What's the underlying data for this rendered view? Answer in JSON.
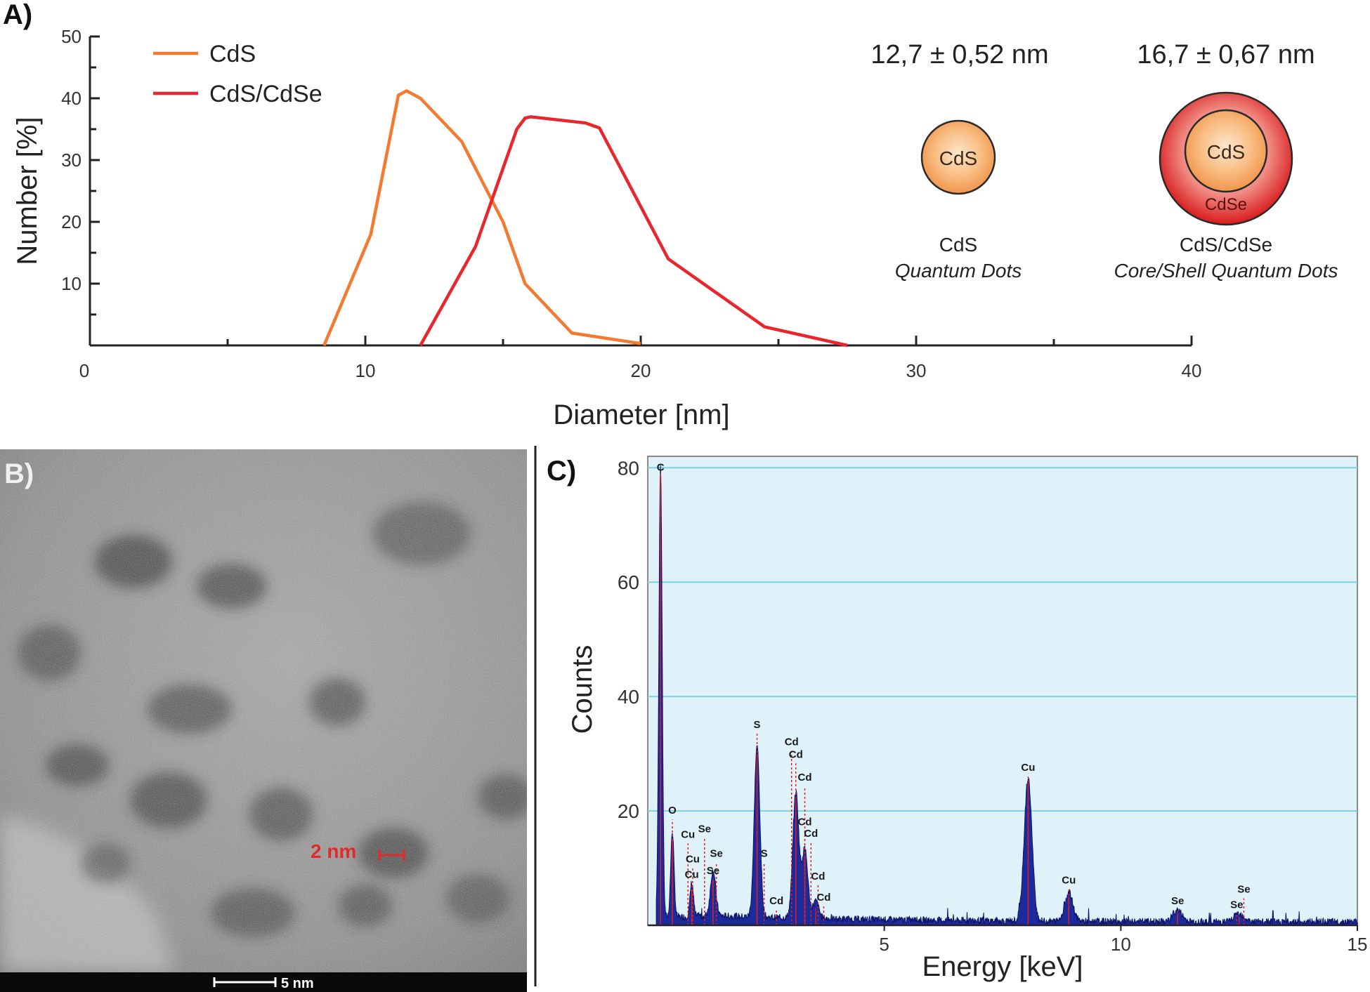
{
  "colors": {
    "cds": "#f47a32",
    "cdsse": "#e8262b",
    "axis": "#222222",
    "eds_bg": "#dff2fa",
    "eds_grid": "#7ecfe4",
    "eds_fill": "#1c2a9c",
    "eds_marker": "#e02020",
    "tem_scale": "#e12a2a"
  },
  "panel_labels": {
    "a": "A)",
    "b": "B)",
    "c": "C)"
  },
  "chart_data": [
    {
      "id": "A",
      "type": "line",
      "title": "",
      "xlabel": "Diameter [nm]",
      "ylabel": "Number [%]",
      "xlim": [
        0,
        40
      ],
      "ylim": [
        0,
        50
      ],
      "xticks": [
        "0",
        "10",
        "20",
        "30",
        "40"
      ],
      "yticks": [
        "10",
        "20",
        "30",
        "40",
        "50"
      ],
      "series": [
        {
          "name": "CdS",
          "color": "#f47a32",
          "x": [
            8.5,
            10.2,
            11.2,
            11.5,
            12.0,
            13.5,
            15.0,
            15.8,
            17.5,
            20.0
          ],
          "y": [
            0,
            18,
            40.5,
            41.2,
            40,
            33,
            20,
            10,
            2,
            0.3
          ]
        },
        {
          "name": "CdS/CdSe",
          "color": "#e8262b",
          "x": [
            12.0,
            14.0,
            15.5,
            15.8,
            16.0,
            18.0,
            18.5,
            21.0,
            24.5,
            27.5
          ],
          "y": [
            0,
            16,
            35,
            36.8,
            37,
            36,
            35.2,
            14,
            3,
            0
          ]
        }
      ],
      "annotations": {
        "size_cds": "12,7 ± 0,52 nm",
        "size_cdsse": "16,7 ± 0,67 nm",
        "core_label": "CdS",
        "shell_label": "CdSe",
        "caption_cds_1": "CdS",
        "caption_cds_2": "Quantum Dots",
        "caption_cdsse_1": "CdS/CdSe",
        "caption_cdsse_2": "Core/Shell Quantum Dots"
      }
    },
    {
      "id": "C",
      "type": "area",
      "title": "",
      "xlabel": "Energy [keV]",
      "ylabel": "Counts",
      "xlim": [
        0,
        15
      ],
      "ylim": [
        0,
        82
      ],
      "xticks": [
        "5",
        "10",
        "15"
      ],
      "yticks": [
        "20",
        "40",
        "60",
        "80"
      ],
      "peaks": [
        {
          "e": 0.27,
          "h": 79
        },
        {
          "e": 0.52,
          "h": 15
        },
        {
          "e": 0.93,
          "h": 6
        },
        {
          "e": 1.38,
          "h": 8
        },
        {
          "e": 2.31,
          "h": 30
        },
        {
          "e": 3.13,
          "h": 22
        },
        {
          "e": 3.32,
          "h": 12
        },
        {
          "e": 3.55,
          "h": 3
        },
        {
          "e": 8.04,
          "h": 25
        },
        {
          "e": 8.9,
          "h": 5
        },
        {
          "e": 11.2,
          "h": 2
        },
        {
          "e": 12.5,
          "h": 1.5
        }
      ],
      "element_labels": [
        {
          "text": "C",
          "e": 0.27,
          "h": 79
        },
        {
          "text": "O",
          "e": 0.52,
          "h": 19
        },
        {
          "text": "Cu",
          "e": 0.85,
          "h": 14.8
        },
        {
          "text": "Se",
          "e": 1.2,
          "h": 15.8
        },
        {
          "text": "Cu",
          "e": 0.95,
          "h": 10.5
        },
        {
          "text": "Se",
          "e": 1.45,
          "h": 11.5
        },
        {
          "text": "Cu",
          "e": 0.93,
          "h": 7.8
        },
        {
          "text": "Se",
          "e": 1.38,
          "h": 8.5
        },
        {
          "text": "S",
          "e": 2.31,
          "h": 34
        },
        {
          "text": "S",
          "e": 2.46,
          "h": 11.5
        },
        {
          "text": "Cd",
          "e": 2.72,
          "h": 3.2
        },
        {
          "text": "Cd",
          "e": 3.04,
          "h": 31
        },
        {
          "text": "Cd",
          "e": 3.13,
          "h": 28.8
        },
        {
          "text": "Cd",
          "e": 3.32,
          "h": 24.8
        },
        {
          "text": "Cd",
          "e": 3.32,
          "h": 17
        },
        {
          "text": "Cd",
          "e": 3.45,
          "h": 15
        },
        {
          "text": "Cd",
          "e": 3.6,
          "h": 7.5
        },
        {
          "text": "Cd",
          "e": 3.72,
          "h": 3.8
        },
        {
          "text": "Cu",
          "e": 8.04,
          "h": 26.5
        },
        {
          "text": "Cu",
          "e": 8.9,
          "h": 6.8
        },
        {
          "text": "Se",
          "e": 11.2,
          "h": 3.2
        },
        {
          "text": "Se",
          "e": 12.45,
          "h": 2.5
        },
        {
          "text": "Se",
          "e": 12.6,
          "h": 5.2
        }
      ]
    }
  ],
  "tem": {
    "feature_scale_label": "2 nm",
    "scalebar_label": "5 nm"
  }
}
